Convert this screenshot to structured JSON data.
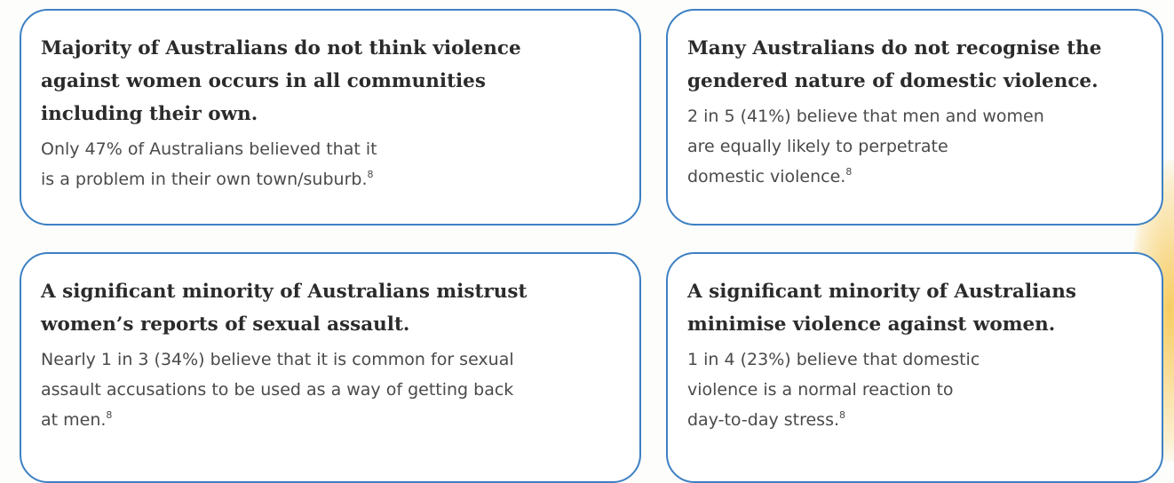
{
  "cards": [
    {
      "title": [
        "Majority of Australians do not think violence",
        "against women occurs in all communities",
        "including their own."
      ],
      "body": [
        "Only 47% of Australians believed that it",
        "is a problem in their own town/suburb."
      ],
      "note": "8"
    },
    {
      "title": [
        "Many Australians do not recognise the",
        "gendered nature of domestic violence."
      ],
      "body": [
        "2 in 5 (41%) believe that men and women",
        "are equally likely to perpetrate",
        "domestic violence."
      ],
      "note": "8"
    },
    {
      "title": [
        "A significant minority of Australians mistrust",
        "women’s reports of sexual assault."
      ],
      "body": [
        "Nearly 1 in 3 (34%) believe that it is common for sexual",
        "assault accusations to be used as a way of getting back",
        "at men."
      ],
      "note": "8"
    },
    {
      "title": [
        "A significant minority of Australians",
        "minimise violence against women."
      ],
      "body": [
        "1 in 4 (23%) believe that domestic",
        "violence is a normal reaction to",
        "day-to-day stress."
      ],
      "note": "8"
    }
  ]
}
